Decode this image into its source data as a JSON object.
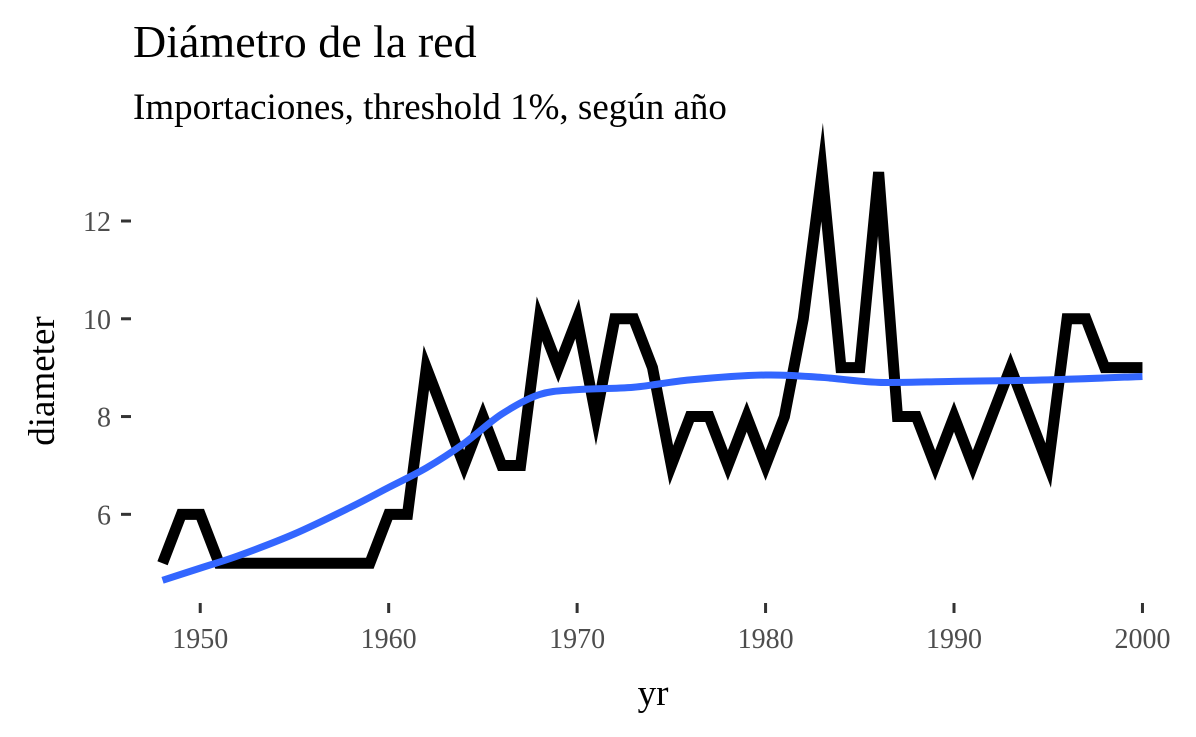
{
  "chart_data": {
    "type": "line",
    "title": "Diámetro de la red",
    "subtitle": "Importaciones, threshold 1%, según año",
    "xlabel": "yr",
    "ylabel": "diameter",
    "xlim": [
      1947.6,
      2000.4
    ],
    "ylim": [
      4.35,
      13.35
    ],
    "xticks": [
      1950,
      1960,
      1970,
      1980,
      1990,
      2000
    ],
    "yticks": [
      6,
      8,
      10,
      12
    ],
    "grid": false,
    "series": [
      {
        "color": "#000000",
        "x": [
          1948,
          1949,
          1950,
          1951,
          1952,
          1953,
          1954,
          1955,
          1956,
          1957,
          1958,
          1959,
          1960,
          1961,
          1962,
          1963,
          1964,
          1965,
          1966,
          1967,
          1968,
          1969,
          1970,
          1971,
          1972,
          1973,
          1974,
          1975,
          1976,
          1977,
          1978,
          1979,
          1980,
          1981,
          1982,
          1983,
          1984,
          1985,
          1986,
          1987,
          1988,
          1989,
          1990,
          1991,
          1992,
          1993,
          1994,
          1995,
          1996,
          1997,
          1998,
          1999,
          2000
        ],
        "values": [
          5,
          6,
          6,
          5,
          5,
          5,
          5,
          5,
          5,
          5,
          5,
          5,
          6,
          6,
          9,
          8,
          7,
          8,
          7,
          7,
          10,
          9,
          10,
          8,
          10,
          10,
          9,
          7,
          8,
          8,
          7,
          8,
          7,
          8,
          10,
          13,
          9,
          9,
          13,
          8,
          8,
          7,
          8,
          7,
          8,
          9,
          8,
          7,
          10,
          10,
          9,
          9,
          9
        ]
      },
      {
        "color": "#3366FF",
        "smooth": true,
        "x": [
          1948,
          1950,
          1952,
          1955,
          1958,
          1960,
          1962,
          1964,
          1966,
          1968,
          1970,
          1973,
          1976,
          1980,
          1983,
          1986,
          1990,
          1995,
          2000
        ],
        "values": [
          4.65,
          4.9,
          5.15,
          5.6,
          6.15,
          6.55,
          6.95,
          7.45,
          8.05,
          8.45,
          8.55,
          8.6,
          8.75,
          8.85,
          8.8,
          8.7,
          8.72,
          8.75,
          8.82
        ]
      }
    ]
  }
}
